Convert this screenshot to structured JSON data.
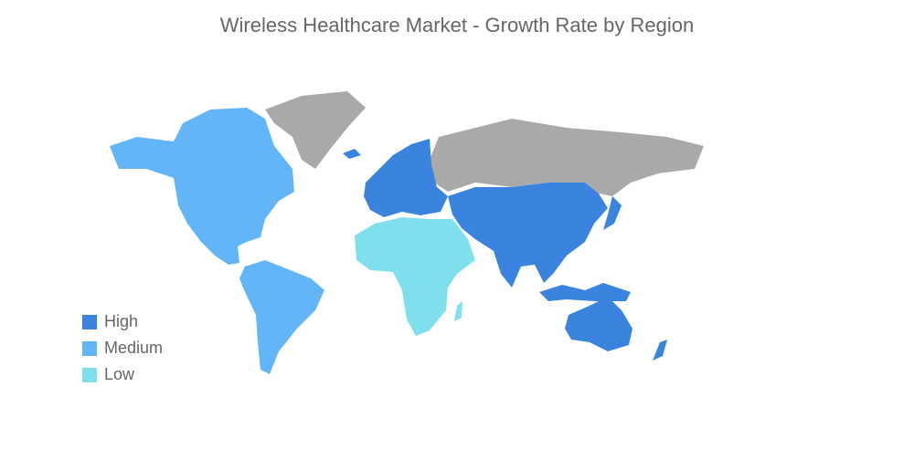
{
  "title": "Wireless Healthcare Market - Growth Rate by Region",
  "legend": [
    {
      "label": "High",
      "color": "#3a84df"
    },
    {
      "label": "Medium",
      "color": "#62b5f7"
    },
    {
      "label": "Low",
      "color": "#7fdfed"
    }
  ],
  "other_color": "#a9a9a9"
}
